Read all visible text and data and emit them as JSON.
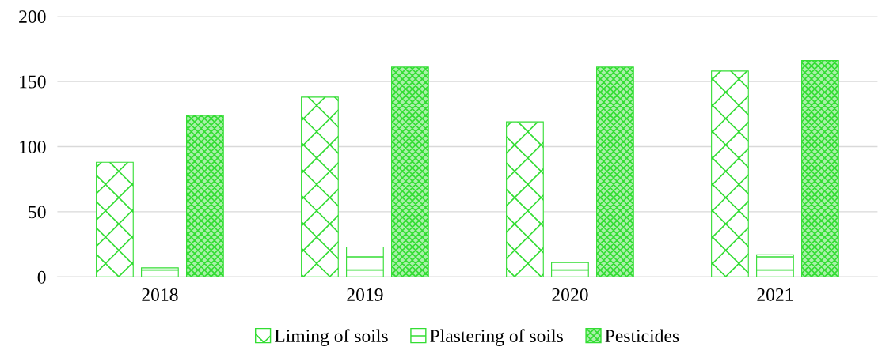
{
  "chart_data": {
    "type": "bar",
    "categories": [
      "2018",
      "2019",
      "2020",
      "2021"
    ],
    "series": [
      {
        "name": "Liming of soils",
        "color": "#33dd33",
        "values": [
          88,
          138,
          119,
          158
        ]
      },
      {
        "name": "Plastering of soils",
        "color": "#33dd33",
        "values": [
          7,
          23,
          11,
          17
        ]
      },
      {
        "name": "Pesticides",
        "color": "#33dd33",
        "values": [
          124,
          161,
          161,
          166
        ]
      }
    ],
    "ylim": [
      0,
      200
    ],
    "yticks": [
      0,
      50,
      100,
      150,
      200
    ],
    "grid": "y",
    "legend": "bottom"
  }
}
